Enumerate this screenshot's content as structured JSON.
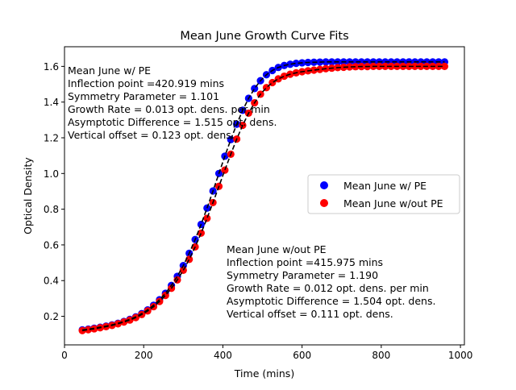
{
  "chart_data": {
    "type": "scatter",
    "title": "Mean June Growth Curve Fits",
    "xlabel": "Time (mins)",
    "ylabel": "Optical Density",
    "xlim": [
      0,
      1010
    ],
    "ylim": [
      0.04,
      1.71
    ],
    "xticks": [
      0,
      200,
      400,
      600,
      800,
      1000
    ],
    "yticks": [
      0.2,
      0.4,
      0.6,
      0.8,
      1.0,
      1.2,
      1.4,
      1.6
    ],
    "grid": false,
    "legend_position": "right",
    "colors": {
      "with_pe": "#0000ff",
      "without_pe": "#ff0000",
      "fit": "#000000"
    },
    "series": [
      {
        "name": "Mean June w/ PE",
        "color": "#0000ff",
        "marker": "circle",
        "x": [
          45,
          60,
          75,
          90,
          105,
          120,
          135,
          150,
          165,
          180,
          195,
          210,
          225,
          240,
          255,
          270,
          285,
          300,
          315,
          330,
          345,
          360,
          375,
          390,
          405,
          420,
          435,
          450,
          465,
          480,
          495,
          510,
          525,
          540,
          555,
          570,
          585,
          600,
          615,
          630,
          645,
          660,
          675,
          690,
          705,
          720,
          735,
          750,
          765,
          780,
          795,
          810,
          825,
          840,
          855,
          870,
          885,
          900,
          915,
          930,
          945,
          960
        ],
        "y": [
          0.124,
          0.128,
          0.133,
          0.139,
          0.145,
          0.152,
          0.161,
          0.171,
          0.183,
          0.197,
          0.215,
          0.236,
          0.262,
          0.293,
          0.329,
          0.373,
          0.424,
          0.484,
          0.553,
          0.63,
          0.715,
          0.806,
          0.902,
          1.0,
          1.097,
          1.19,
          1.276,
          1.354,
          1.421,
          1.476,
          1.52,
          1.553,
          1.577,
          1.594,
          1.605,
          1.612,
          1.617,
          1.62,
          1.622,
          1.623,
          1.624,
          1.625,
          1.625,
          1.625,
          1.625,
          1.625,
          1.625,
          1.625,
          1.625,
          1.625,
          1.625,
          1.625,
          1.625,
          1.625,
          1.625,
          1.625,
          1.625,
          1.625,
          1.625,
          1.625,
          1.625,
          1.625
        ]
      },
      {
        "name": "Mean June w/out PE",
        "color": "#ff0000",
        "marker": "circle",
        "x": [
          45,
          60,
          75,
          90,
          105,
          120,
          135,
          150,
          165,
          180,
          195,
          210,
          225,
          240,
          255,
          270,
          285,
          300,
          315,
          330,
          345,
          360,
          375,
          390,
          405,
          420,
          435,
          450,
          465,
          480,
          495,
          510,
          525,
          540,
          555,
          570,
          585,
          600,
          615,
          630,
          645,
          660,
          675,
          690,
          705,
          720,
          735,
          750,
          765,
          780,
          795,
          810,
          825,
          840,
          855,
          870,
          885,
          900,
          915,
          930,
          945,
          960
        ],
        "y": [
          0.12,
          0.125,
          0.13,
          0.136,
          0.142,
          0.149,
          0.158,
          0.168,
          0.179,
          0.193,
          0.21,
          0.23,
          0.254,
          0.283,
          0.317,
          0.357,
          0.404,
          0.458,
          0.519,
          0.589,
          0.666,
          0.749,
          0.837,
          0.928,
          1.019,
          1.108,
          1.193,
          1.27,
          1.338,
          1.396,
          1.444,
          1.481,
          1.509,
          1.53,
          1.545,
          1.556,
          1.564,
          1.57,
          1.575,
          1.579,
          1.583,
          1.587,
          1.59,
          1.593,
          1.595,
          1.597,
          1.598,
          1.599,
          1.599,
          1.6,
          1.6,
          1.6,
          1.6,
          1.6,
          1.6,
          1.6,
          1.6,
          1.6,
          1.6,
          1.6,
          1.6,
          1.6
        ]
      }
    ],
    "annotations": [
      {
        "lines": [
          "Mean June w/ PE",
          "Inflection point =420.919 mins",
          "Symmetry Parameter = 1.101",
          "Growth Rate = 0.013 opt. dens. per min",
          "Asymptotic Difference = 1.515 opt. dens.",
          "Vertical offset = 0.123 opt. dens."
        ]
      },
      {
        "lines": [
          "Mean June w/out PE",
          "Inflection point =415.975 mins",
          "Symmetry Parameter = 1.190",
          "Growth Rate = 0.012 opt. dens. per min",
          "Asymptotic Difference = 1.504 opt. dens.",
          "Vertical offset = 0.111 opt. dens."
        ]
      }
    ]
  }
}
